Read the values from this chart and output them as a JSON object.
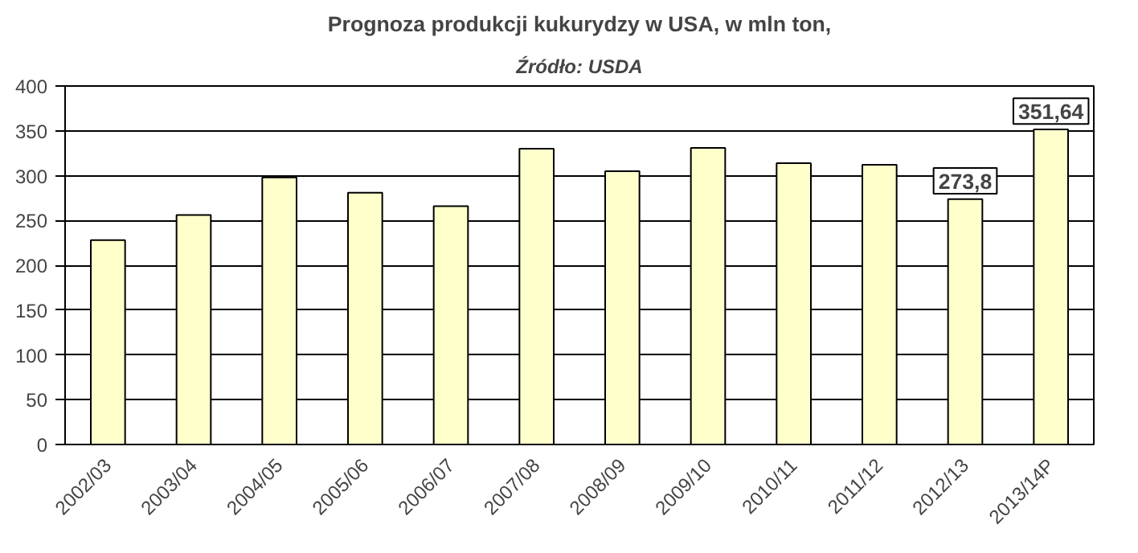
{
  "chart_data": {
    "type": "bar",
    "title": "Prognoza produkcji kukurydzy w USA, w mln ton,",
    "subtitle": "Źródło: USDA",
    "categories": [
      "2002/03",
      "2003/04",
      "2004/05",
      "2005/06",
      "2006/07",
      "2007/08",
      "2008/09",
      "2009/10",
      "2010/11",
      "2011/12",
      "2012/13",
      "2013/14P"
    ],
    "values": [
      228,
      256,
      298,
      281,
      266,
      330,
      305,
      331,
      314,
      312,
      273.8,
      351.64
    ],
    "value_labels": [
      null,
      null,
      null,
      null,
      null,
      null,
      null,
      null,
      null,
      null,
      "273,8",
      "351,64"
    ],
    "color": "#ffffcc",
    "ylim": [
      0,
      400
    ],
    "yticks": [
      0,
      50,
      100,
      150,
      200,
      250,
      300,
      350,
      400
    ],
    "grid": "y"
  }
}
